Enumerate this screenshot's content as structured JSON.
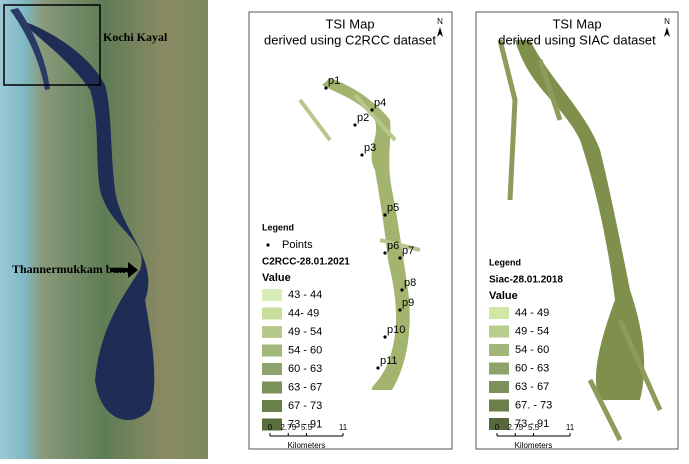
{
  "satellite": {
    "labels": [
      "Kochi Kayal",
      "Thannermukkam bund"
    ]
  },
  "panels": [
    {
      "title": "TSI Map",
      "subtitle": "derived using C2RCC dataset",
      "north": "N",
      "points": [
        "p1",
        "p2",
        "p3",
        "p4",
        "p5",
        "p6",
        "p7",
        "p8",
        "p9",
        "p10",
        "p11"
      ],
      "legend": {
        "title": "Legend",
        "points_label": "Points",
        "dataset": "C2RCC-28.01.2021",
        "value_label": "Value",
        "classes": [
          "43 - 44",
          "44- 49",
          "49 - 54",
          "54 - 60",
          "60 - 63",
          "63 - 67",
          "67 - 73",
          "73 - 91"
        ],
        "colors": [
          "#d9ecb4",
          "#c8dc9e",
          "#b5c98b",
          "#a1b679",
          "#8ea369",
          "#7c9159",
          "#6b7f4a",
          "#5a6d3c"
        ]
      },
      "scale": {
        "ticks": [
          "0",
          "2.75",
          "5.5",
          "11"
        ],
        "unit": "Kilometers"
      }
    },
    {
      "title": "TSI Map",
      "subtitle": "derived using SIAC dataset",
      "north": "N",
      "legend": {
        "title": "Legend",
        "dataset": "Siac-28.01.2018",
        "value_label": "Value",
        "classes": [
          "44 - 49",
          "49 - 54",
          "54 - 60",
          "60 - 63",
          "63 - 67",
          "67. - 73",
          "73 - 91"
        ],
        "colors": [
          "#d2e6a8",
          "#b9cd8d",
          "#a1b679",
          "#8ea369",
          "#7c9159",
          "#6b7f4a",
          "#56683a"
        ]
      },
      "scale": {
        "ticks": [
          "0",
          "2.75",
          "5.5",
          "11"
        ],
        "unit": "Kilometers"
      }
    }
  ]
}
